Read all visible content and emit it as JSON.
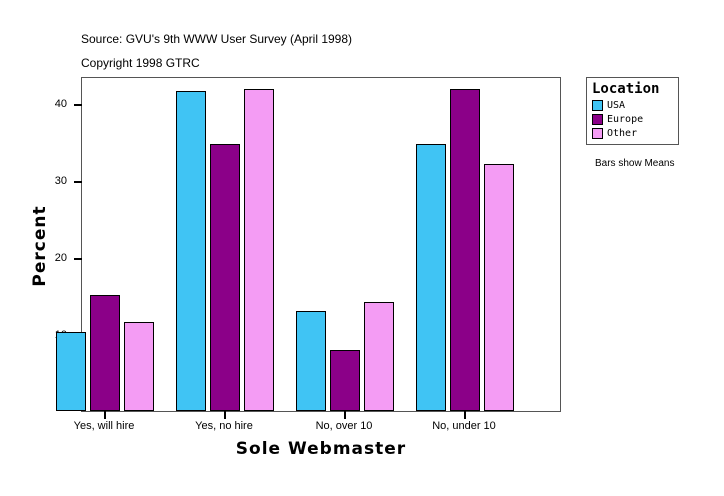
{
  "header": {
    "source": "Source: GVU's 9th WWW User Survey (April 1998)",
    "copyright": "Copyright 1998 GTRC"
  },
  "legend": {
    "title": "Location",
    "items": [
      {
        "label": "USA",
        "color": "#40C4F4"
      },
      {
        "label": "Europe",
        "color": "#8B0088"
      },
      {
        "label": "Other",
        "color": "#F49CF4"
      }
    ]
  },
  "note": "Bars show Means",
  "chart_data": {
    "type": "bar",
    "title": "",
    "xlabel": "Sole Webmaster",
    "ylabel": "Percent",
    "categories": [
      "Yes, will hire",
      "Yes, no hire",
      "No, over 10",
      "No, under 10"
    ],
    "series": [
      {
        "name": "USA",
        "color": "#40C4F4",
        "values": [
          10.3,
          41.6,
          13.0,
          34.7
        ]
      },
      {
        "name": "Europe",
        "color": "#8B0088",
        "values": [
          15.1,
          34.7,
          7.9,
          41.8
        ]
      },
      {
        "name": "Other",
        "color": "#F49CF4",
        "values": [
          11.6,
          41.8,
          14.2,
          32.1
        ]
      }
    ],
    "yticks": [
      10,
      20,
      30,
      40
    ],
    "ylim": [
      0,
      43.5
    ],
    "grid": false,
    "legend_position": "right"
  }
}
